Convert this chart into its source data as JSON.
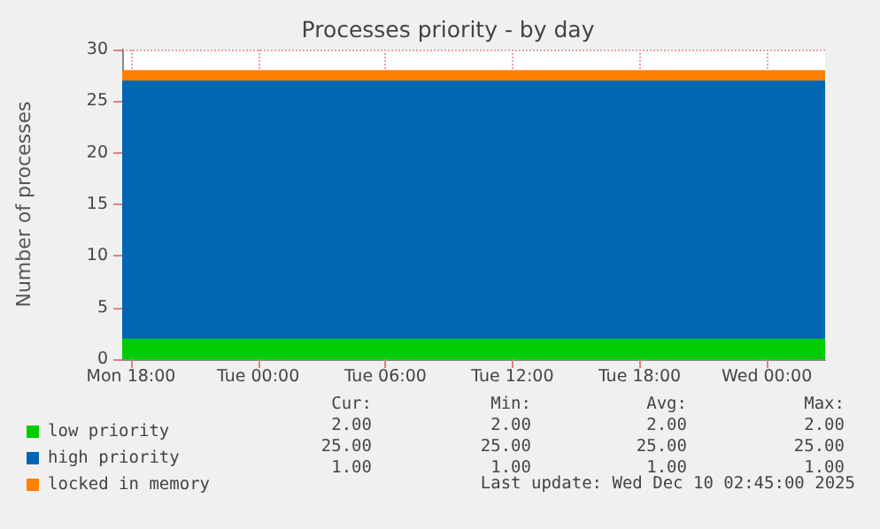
{
  "chart_data": {
    "type": "area",
    "title": "Processes priority - by day",
    "ylabel": "Number of processes",
    "stacked": true,
    "legend": "bottom left",
    "grid": true,
    "x": [
      "2025-12-08T17:35",
      "2025-12-10T02:45"
    ],
    "xlim": [
      "2025-12-08T17:35",
      "2025-12-10T02:45"
    ],
    "xticks": [
      {
        "value": "2025-12-08T18:00",
        "label": "Mon 18:00"
      },
      {
        "value": "2025-12-09T00:00",
        "label": "Tue 00:00"
      },
      {
        "value": "2025-12-09T06:00",
        "label": "Tue 06:00"
      },
      {
        "value": "2025-12-09T12:00",
        "label": "Tue 12:00"
      },
      {
        "value": "2025-12-09T18:00",
        "label": "Tue 18:00"
      },
      {
        "value": "2025-12-10T00:00",
        "label": "Wed 00:00"
      }
    ],
    "ylim": [
      0,
      30
    ],
    "yticks": [
      0,
      5,
      10,
      15,
      20,
      25,
      30
    ],
    "series": [
      {
        "name": "low priority",
        "color": "#00cc00",
        "values": [
          2,
          2
        ]
      },
      {
        "name": "high priority",
        "color": "#0066b3",
        "values": [
          25,
          25
        ]
      },
      {
        "name": "locked in memory",
        "color": "#ff8000",
        "values": [
          1,
          1
        ]
      }
    ],
    "annotations": [
      "Cur:",
      "Min:",
      "Avg:",
      "Max:",
      "2.00",
      "2.00",
      "2.00",
      "2.00",
      "25.00",
      "25.00",
      "25.00",
      "25.00",
      "1.00",
      "1.00",
      "1.00",
      "1.00",
      "Last update: Wed Dec 10 02:45:00 2025"
    ]
  }
}
